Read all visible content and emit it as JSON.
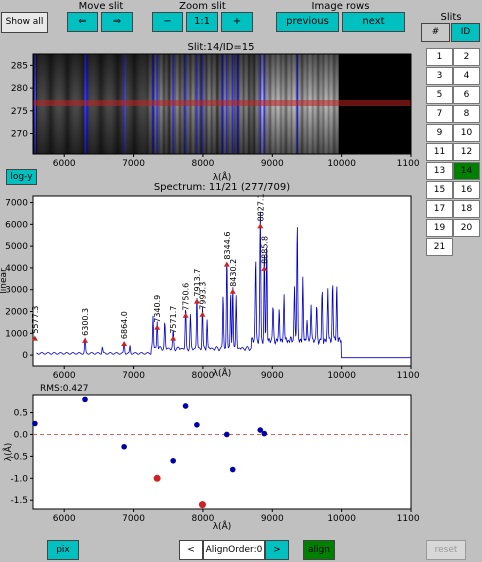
{
  "toolbar": {
    "show_all": "Show all",
    "move_slit": {
      "title": "Move slit",
      "left": "⇐",
      "right": "⇒"
    },
    "zoom_slit": {
      "title": "Zoom slit",
      "minus": "−",
      "one": "1:1",
      "plus": "+"
    },
    "image_rows": {
      "title": "Image rows",
      "previous": "previous",
      "next": "next"
    }
  },
  "slits": {
    "title": "Slits",
    "hash": "#",
    "id": "ID",
    "items": [
      "1",
      "2",
      "3",
      "4",
      "5",
      "6",
      "7",
      "8",
      "9",
      "10",
      "11",
      "12",
      "13",
      "14",
      "15",
      "16",
      "17",
      "18",
      "19",
      "20",
      "21"
    ],
    "selected": "14"
  },
  "image_panel": {
    "title": "Slit:14/ID=15",
    "y_ticks": [
      "285",
      "280",
      "275",
      "270"
    ],
    "x_ticks": [
      "6000",
      "7000",
      "8000",
      "9000",
      "10000",
      "11000"
    ],
    "xlabel": "λ(Å)",
    "logy_button": "log-y"
  },
  "chart_data": [
    {
      "type": "line",
      "title": "Spectrum: 11/21 (277/709)",
      "xlabel": "λ(Å)",
      "ylabel": "linear",
      "xlim": [
        5550,
        11000
      ],
      "ylim": [
        -500,
        7300
      ],
      "x_ticks": [
        "6000",
        "7000",
        "8000",
        "9000",
        "10000",
        "11000"
      ],
      "y_ticks": [
        "7000",
        "6000",
        "5000",
        "4000",
        "3000",
        "2000",
        "1000",
        "0"
      ],
      "lines": [
        {
          "x": 5577.3,
          "y": 800,
          "label": "5577.3"
        },
        {
          "x": 6300.3,
          "y": 700,
          "label": "6300.3"
        },
        {
          "x": 6864.0,
          "y": 550,
          "label": "6864.0"
        },
        {
          "x": 7340.9,
          "y": 1300,
          "label": "7340.9"
        },
        {
          "x": 7571.7,
          "y": 800,
          "label": "7571.7"
        },
        {
          "x": 7750.6,
          "y": 1850,
          "label": "7750.6"
        },
        {
          "x": 7913.7,
          "y": 2500,
          "label": "7913.7"
        },
        {
          "x": 7993.3,
          "y": 1900,
          "label": "7993.3"
        },
        {
          "x": 8344.6,
          "y": 4200,
          "label": "8344.6"
        },
        {
          "x": 8430.2,
          "y": 2950,
          "label": "8430.2"
        },
        {
          "x": 8827.1,
          "y": 5950,
          "label": "8827.1"
        },
        {
          "x": 8885.8,
          "y": 4000,
          "label": "8885.8"
        }
      ]
    },
    {
      "type": "scatter",
      "title": "RMS:0.427",
      "xlabel": "λ(Å)",
      "ylabel": "λ(Å)",
      "xlim": [
        5550,
        11000
      ],
      "ylim": [
        -1.7,
        0.9
      ],
      "x_ticks": [
        "6000",
        "7000",
        "8000",
        "9000",
        "10000",
        "11000"
      ],
      "y_ticks": [
        "0.5",
        "0.0",
        "-0.5",
        "-1.0",
        "-1.5"
      ],
      "reference_line": 0.0,
      "points": [
        {
          "x": 5577,
          "y": 0.25,
          "color": "#0000aa"
        },
        {
          "x": 6300,
          "y": 0.8,
          "color": "#0000aa"
        },
        {
          "x": 6864,
          "y": -0.28,
          "color": "#0000aa"
        },
        {
          "x": 7340,
          "y": -1.0,
          "color": "#cc2222"
        },
        {
          "x": 7571,
          "y": -0.6,
          "color": "#0000aa"
        },
        {
          "x": 7750,
          "y": 0.65,
          "color": "#0000aa"
        },
        {
          "x": 7913,
          "y": 0.22,
          "color": "#0000aa"
        },
        {
          "x": 7993,
          "y": -1.6,
          "color": "#cc2222"
        },
        {
          "x": 8344,
          "y": 0.0,
          "color": "#0000aa"
        },
        {
          "x": 8430,
          "y": -0.8,
          "color": "#0000aa"
        },
        {
          "x": 8827,
          "y": 0.1,
          "color": "#0000aa"
        },
        {
          "x": 8885,
          "y": 0.02,
          "color": "#0000aa"
        }
      ]
    }
  ],
  "bottom": {
    "pix": "pix",
    "prev": "<",
    "align_order": "AlignOrder:0",
    "next": ">",
    "align": "align",
    "reset": "reset"
  },
  "colors": {
    "accent": "#00c0c0",
    "selected": "#008000",
    "marker": "#cc2222",
    "line": "#0000cc"
  }
}
